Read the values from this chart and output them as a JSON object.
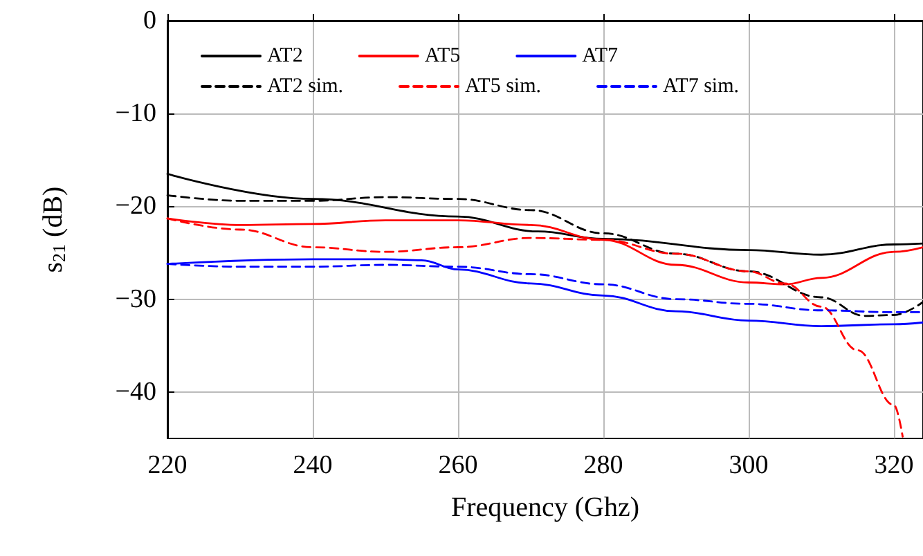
{
  "chart_data": {
    "type": "line",
    "xlabel": "Frequency (Ghz)",
    "ylabel": "s$_{21}$ (dB)",
    "xlim": [
      220,
      324
    ],
    "xticks": [
      220,
      240,
      260,
      280,
      300,
      320
    ],
    "ylim": [
      -45,
      0
    ],
    "yticks": [
      0,
      -10,
      -20,
      -30,
      -40
    ],
    "grid": true,
    "legend": "top",
    "marker": "none",
    "series": [
      {
        "name": "AT2",
        "color": "#000000",
        "line_style": "solid",
        "x": [
          220,
          240,
          260,
          271,
          280,
          300,
          310,
          320,
          324
        ],
        "values": [
          -16.5,
          -19.2,
          -21.1,
          -22.7,
          -23.5,
          -24.7,
          -25.2,
          -24.1,
          -24.0
        ]
      },
      {
        "name": "AT5",
        "color": "#ff0000",
        "line_style": "solid",
        "x": [
          220,
          230,
          240,
          250,
          260,
          270,
          280,
          290,
          300,
          305,
          310,
          320,
          324
        ],
        "values": [
          -21.3,
          -22.0,
          -21.9,
          -21.5,
          -21.5,
          -22.0,
          -23.6,
          -26.3,
          -28.2,
          -28.4,
          -27.7,
          -24.9,
          -24.4
        ]
      },
      {
        "name": "AT7",
        "color": "#0000ff",
        "line_style": "solid",
        "x": [
          220,
          240,
          250,
          255,
          260,
          270,
          280,
          290,
          300,
          310,
          320,
          324
        ],
        "values": [
          -26.2,
          -25.7,
          -25.7,
          -25.8,
          -26.8,
          -28.3,
          -29.6,
          -31.3,
          -32.3,
          -32.9,
          -32.7,
          -32.5
        ]
      },
      {
        "name": "AT2 sim.",
        "color": "#000000",
        "line_style": "dashed",
        "x": [
          220,
          230,
          240,
          250,
          260,
          270,
          280,
          290,
          300,
          310,
          316,
          320,
          324
        ],
        "values": [
          -18.8,
          -19.4,
          -19.4,
          -19.0,
          -19.2,
          -20.4,
          -22.9,
          -25.1,
          -27.0,
          -29.8,
          -31.8,
          -31.7,
          -30.3
        ]
      },
      {
        "name": "AT5 sim.",
        "color": "#ff0000",
        "line_style": "dashed",
        "x": [
          220,
          230,
          240,
          250,
          260,
          270,
          280,
          290,
          300,
          305,
          310,
          315,
          320,
          321.2
        ],
        "values": [
          -21.3,
          -22.5,
          -24.4,
          -24.9,
          -24.4,
          -23.4,
          -23.6,
          -25.1,
          -27.0,
          -28.3,
          -30.8,
          -35.5,
          -41.4,
          -44.8
        ]
      },
      {
        "name": "AT7 sim.",
        "color": "#0000ff",
        "line_style": "dashed",
        "x": [
          220,
          230,
          240,
          250,
          260,
          270,
          280,
          290,
          300,
          310,
          320,
          324
        ],
        "values": [
          -26.2,
          -26.5,
          -26.5,
          -26.3,
          -26.5,
          -27.3,
          -28.4,
          -30.0,
          -30.5,
          -31.2,
          -31.4,
          -31.4
        ]
      }
    ]
  }
}
